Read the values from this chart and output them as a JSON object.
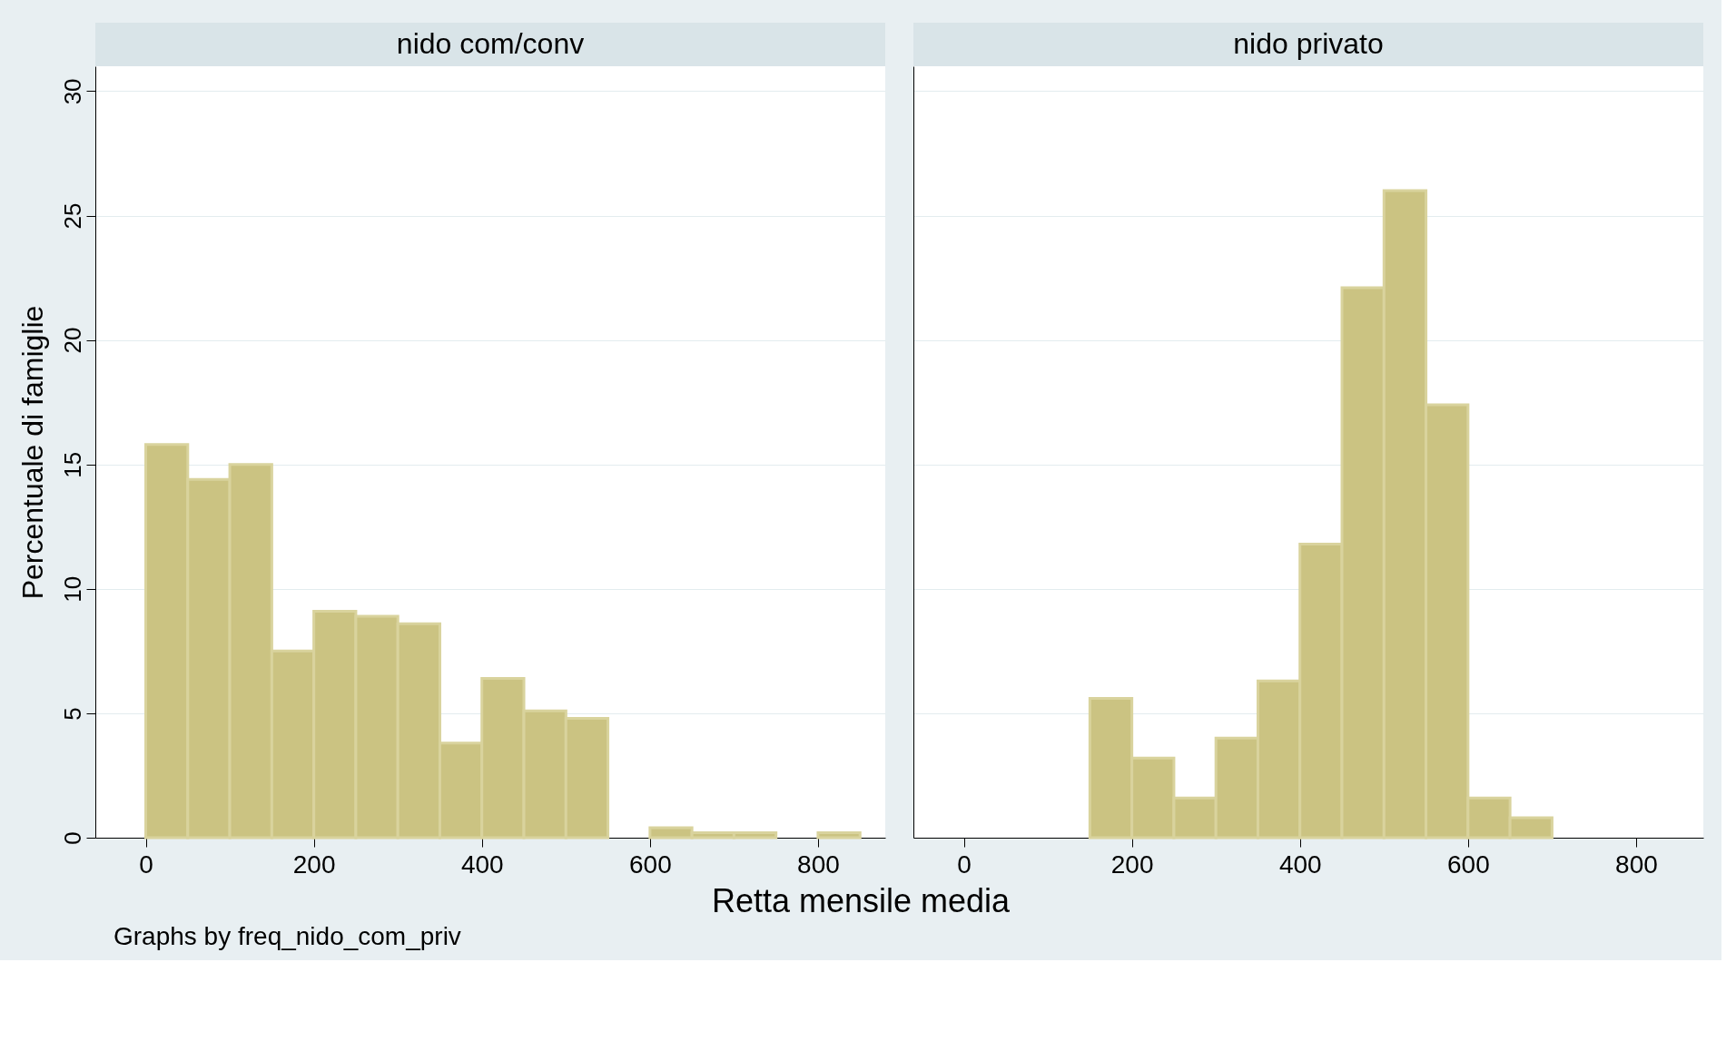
{
  "chart_data": [
    {
      "type": "histogram",
      "title": "nido com/conv",
      "ylabel": "Percentuale di famiglie",
      "xlabel": "Retta mensile media",
      "annotations": [
        "Graphs by freq_nido_com_priv"
      ],
      "bins": [
        0,
        50,
        100,
        150,
        200,
        250,
        300,
        350,
        400,
        450,
        500,
        550,
        600,
        650,
        700,
        750,
        800,
        850
      ],
      "values": [
        15.8,
        14.4,
        15.0,
        7.5,
        9.1,
        8.9,
        8.6,
        3.8,
        6.4,
        5.1,
        4.8,
        0,
        0.4,
        0.2,
        0.2,
        0,
        0.2
      ],
      "color": "#cbc382",
      "xlim": [
        -60,
        880
      ],
      "xticks": [
        0,
        200,
        400,
        600,
        800
      ],
      "ylim": [
        0,
        31
      ],
      "yticks": [
        0,
        5,
        10,
        15,
        20,
        25,
        30
      ],
      "grid": "y"
    },
    {
      "type": "histogram",
      "title": "nido privato",
      "tick_labels": "x",
      "bins": [
        150,
        200,
        250,
        300,
        350,
        400,
        450,
        500,
        550,
        600,
        650,
        700
      ],
      "values": [
        5.6,
        3.2,
        1.6,
        4.0,
        6.3,
        11.8,
        22.1,
        26.0,
        17.4,
        1.6,
        0.8
      ],
      "color": "#cbc382",
      "xlim": [
        -60,
        880
      ],
      "xticks": [
        0,
        200,
        400,
        600,
        800
      ],
      "ylim": [
        0,
        31
      ],
      "yticks": [
        0,
        5,
        10,
        15,
        20,
        25,
        30
      ],
      "grid": "y"
    }
  ]
}
